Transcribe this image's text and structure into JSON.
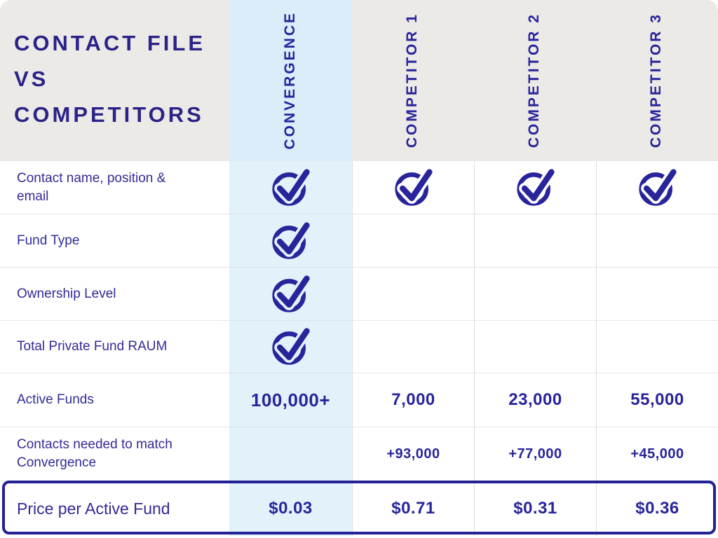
{
  "title": {
    "lines": [
      "CONTACT FILE",
      "VS",
      "COMPETITORS"
    ]
  },
  "header": {
    "columns": [
      {
        "label": "CONVERGENCE",
        "highlight": true
      },
      {
        "label": "COMPETITOR 1",
        "highlight": false
      },
      {
        "label": "COMPETITOR 2",
        "highlight": false
      },
      {
        "label": "COMPETITOR 3",
        "highlight": false
      }
    ]
  },
  "rows": [
    {
      "label": "Contact name, position & email",
      "cells": [
        "check",
        "check",
        "check",
        "check"
      ],
      "style": "normal"
    },
    {
      "label": "Fund Type",
      "cells": [
        "check",
        "",
        "",
        ""
      ],
      "style": "normal"
    },
    {
      "label": "Ownership Level",
      "cells": [
        "check",
        "",
        "",
        ""
      ],
      "style": "normal"
    },
    {
      "label": "Total Private Fund RAUM",
      "cells": [
        "check",
        "",
        "",
        ""
      ],
      "style": "normal"
    },
    {
      "label": "Active Funds",
      "cells": [
        "100,000+",
        "7,000",
        "23,000",
        "55,000"
      ],
      "style": "emphasis"
    },
    {
      "label": "Contacts needed to match Convergence",
      "cells": [
        "",
        "+93,000",
        "+77,000",
        "+45,000"
      ],
      "style": "medium"
    },
    {
      "label": "Price per Active Fund",
      "cells": [
        "$0.03",
        "$0.71",
        "$0.31",
        "$0.36"
      ],
      "style": "price"
    }
  ],
  "icons": {
    "check": "check-circle-icon"
  },
  "colors": {
    "navy": "#28249b",
    "title_navy": "#2b2387",
    "header_bg": "#eceae7",
    "highlight_bg": "#e3f1fb",
    "highlight_header_bg": "#dcedfa",
    "divider": "#e5e3e0",
    "outline": "#232294",
    "white": "#ffffff"
  },
  "chart_data": {
    "type": "table",
    "title": "CONTACT FILE VS COMPETITORS",
    "columns": [
      "Feature",
      "CONVERGENCE",
      "COMPETITOR 1",
      "COMPETITOR 2",
      "COMPETITOR 3"
    ],
    "rows": [
      [
        "Contact name, position & email",
        true,
        true,
        true,
        true
      ],
      [
        "Fund Type",
        true,
        false,
        false,
        false
      ],
      [
        "Ownership Level",
        true,
        false,
        false,
        false
      ],
      [
        "Total Private Fund RAUM",
        true,
        false,
        false,
        false
      ],
      [
        "Active Funds",
        "100,000+",
        "7,000",
        "23,000",
        "55,000"
      ],
      [
        "Contacts needed to match Convergence",
        "",
        "+93,000",
        "+77,000",
        "+45,000"
      ],
      [
        "Price per Active Fund",
        "$0.03",
        "$0.71",
        "$0.31",
        "$0.36"
      ]
    ],
    "highlighted_column": "CONVERGENCE",
    "highlighted_row": "Price per Active Fund"
  }
}
